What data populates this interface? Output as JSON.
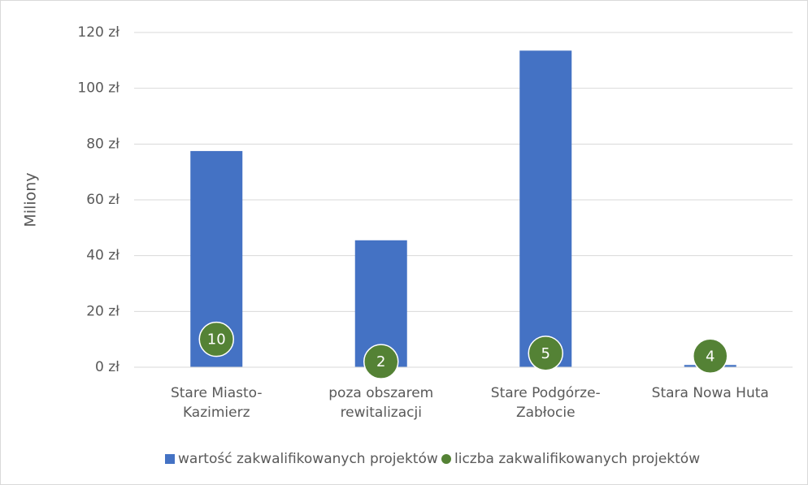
{
  "chart_data": {
    "type": "bar",
    "y_label": "Miliony",
    "categories": [
      "Stare Miasto-Kazimierz",
      "poza obszarem rewitalizacji",
      "Stare Podgórze-Zabłocie",
      "Stara Nowa Huta"
    ],
    "series": [
      {
        "name": "wartość zakwalifikowanych projektów",
        "color": "#4472c4",
        "values": [
          77.5,
          45.5,
          113.5,
          0.8
        ]
      },
      {
        "name": "liczba zakwalifikowanych projektów",
        "color": "#548235",
        "values": [
          10,
          2,
          5,
          4
        ]
      }
    ],
    "ylim": [
      0,
      120
    ],
    "yticks": [
      {
        "value": 0,
        "label": "0 zł"
      },
      {
        "value": 20,
        "label": "20 zł"
      },
      {
        "value": 40,
        "label": "40 zł"
      },
      {
        "value": 60,
        "label": "60 zł"
      },
      {
        "value": 80,
        "label": "80 zł"
      },
      {
        "value": 100,
        "label": "100 zł"
      },
      {
        "value": 120,
        "label": "120 zł"
      }
    ],
    "grid": true,
    "legend": "bottom"
  }
}
